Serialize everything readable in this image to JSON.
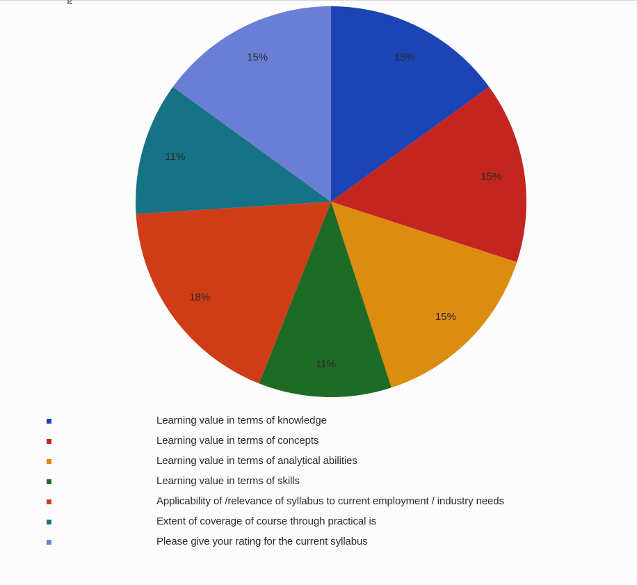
{
  "header": {
    "caption": "g"
  },
  "chart_data": {
    "type": "pie",
    "title": "",
    "slices": [
      {
        "label": "Learning value  in terms of knowledge",
        "value": 15,
        "display": "15%",
        "color": "#1c44b4"
      },
      {
        "label": "Learning value  in terms of  concepts",
        "value": 15,
        "display": "15%",
        "color": "#c4261f"
      },
      {
        "label": "Learning value  in terms of analytical abilities",
        "value": 15,
        "display": "15%",
        "color": "#dd8c12"
      },
      {
        "label": "Learning value  in terms of skills",
        "value": 11,
        "display": "11%",
        "color": "#1e6b26"
      },
      {
        "label": "Applicability of /relevance of syllabus to current employment / industry needs",
        "value": 18,
        "display": "18%",
        "color": "#cf3d16"
      },
      {
        "label": "Extent of coverage of course through practical is",
        "value": 11,
        "display": "11%",
        "color": "#157385"
      },
      {
        "label": "Please give your rating for the  current syllabus",
        "value": 15,
        "display": "15%",
        "color": "#6b7ed6"
      }
    ],
    "legend_position": "bottom"
  }
}
